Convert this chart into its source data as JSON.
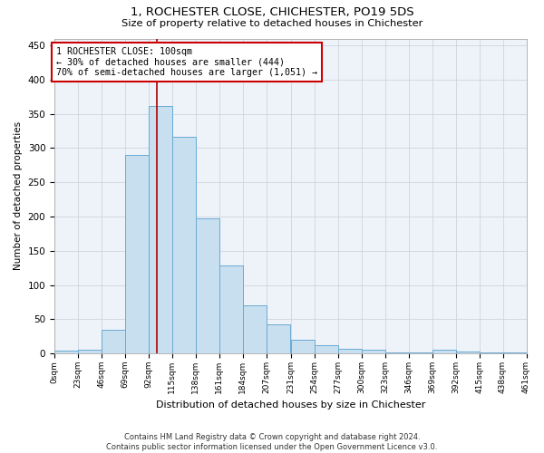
{
  "title": "1, ROCHESTER CLOSE, CHICHESTER, PO19 5DS",
  "subtitle": "Size of property relative to detached houses in Chichester",
  "xlabel": "Distribution of detached houses by size in Chichester",
  "ylabel": "Number of detached properties",
  "bar_color": "#c8dff0",
  "bar_edge_color": "#6aaad4",
  "background_color": "#ffffff",
  "plot_bg_color": "#eef3fa",
  "grid_color": "#c8cfd8",
  "bin_edges": [
    0,
    23,
    46,
    69,
    92,
    115,
    138,
    161,
    184,
    207,
    231,
    254,
    277,
    300,
    323,
    346,
    369,
    392,
    415,
    438,
    461
  ],
  "bin_labels": [
    "0sqm",
    "23sqm",
    "46sqm",
    "69sqm",
    "92sqm",
    "115sqm",
    "138sqm",
    "161sqm",
    "184sqm",
    "207sqm",
    "231sqm",
    "254sqm",
    "277sqm",
    "300sqm",
    "323sqm",
    "346sqm",
    "369sqm",
    "392sqm",
    "415sqm",
    "438sqm",
    "461sqm"
  ],
  "counts": [
    4,
    6,
    35,
    290,
    362,
    317,
    197,
    128,
    70,
    42,
    20,
    12,
    7,
    5,
    2,
    1,
    6,
    3,
    2,
    1
  ],
  "property_size": 100,
  "vline_color": "#aa0000",
  "annotation_line1": "1 ROCHESTER CLOSE: 100sqm",
  "annotation_line2": "← 30% of detached houses are smaller (444)",
  "annotation_line3": "70% of semi-detached houses are larger (1,051) →",
  "annotation_box_color": "#cc0000",
  "footer_text": "Contains HM Land Registry data © Crown copyright and database right 2024.\nContains public sector information licensed under the Open Government Licence v3.0.",
  "ylim": [
    0,
    460
  ],
  "yticks": [
    0,
    50,
    100,
    150,
    200,
    250,
    300,
    350,
    400,
    450
  ]
}
